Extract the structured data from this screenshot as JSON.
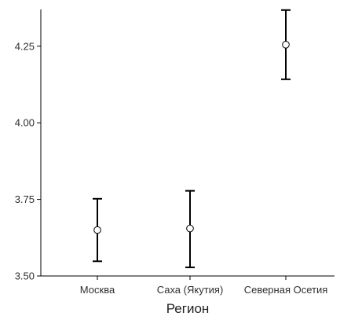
{
  "chart_data": {
    "type": "scatter",
    "subtype": "point-with-error-bars",
    "title": "",
    "xlabel": "Регион",
    "ylabel": "",
    "categories": [
      "Москва",
      "Саха (Якутия)",
      "Северная Осетия"
    ],
    "series": [
      {
        "values": [
          3.65,
          3.655,
          4.255
        ],
        "error_low": [
          3.548,
          3.528,
          4.142
        ],
        "error_high": [
          3.752,
          3.778,
          4.368
        ]
      }
    ],
    "ylim": [
      3.5,
      4.37
    ],
    "yticks": [
      3.5,
      3.75,
      4.0,
      4.25
    ],
    "ytick_labels": [
      "3.50",
      "3.75",
      "4.00",
      "4.25"
    ],
    "grid": false,
    "legend": "none",
    "colors": {
      "axis": "#000000",
      "marker_fill": "#ffffff",
      "marker_stroke": "#000000",
      "errorbar": "#000000",
      "text": "#2f2f2f"
    }
  }
}
